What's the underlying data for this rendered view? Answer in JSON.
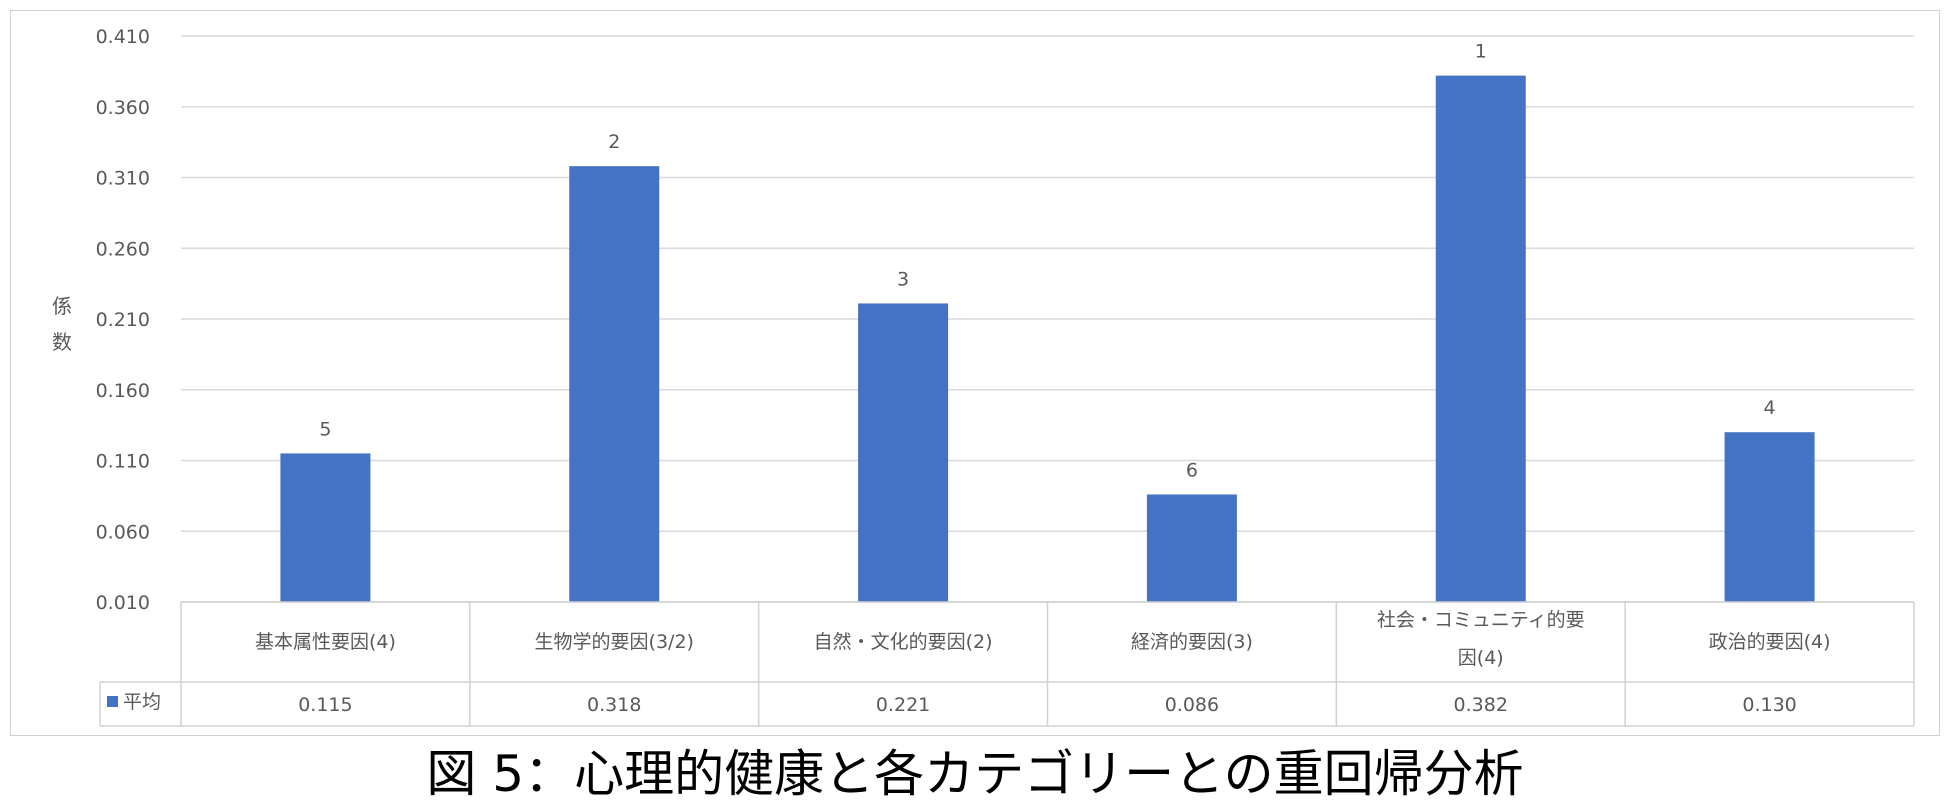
{
  "caption": "図 5：心理的健康と各カテゴリーとの重回帰分析",
  "chart_data": {
    "type": "bar",
    "title": "",
    "ylabel": "係数",
    "ylim": [
      0.01,
      0.41
    ],
    "yticks": [
      "0.410",
      "0.360",
      "0.310",
      "0.260",
      "0.210",
      "0.160",
      "0.110",
      "0.060",
      "0.010"
    ],
    "ytick_values": [
      0.41,
      0.36,
      0.31,
      0.26,
      0.21,
      0.16,
      0.11,
      0.06,
      0.01
    ],
    "grid": true,
    "categories": [
      "基本属性要因(4)",
      "生物学的要因(3/2)",
      "自然・文化的要因(2)",
      "経済的要因(3)",
      "社会・コミュニティ的要因(4)",
      "政治的要因(4)"
    ],
    "series": [
      {
        "name": "平均",
        "color": "#4472C4",
        "values": [
          0.115,
          0.318,
          0.221,
          0.086,
          0.382,
          0.13
        ],
        "value_labels": [
          "0.115",
          "0.318",
          "0.221",
          "0.086",
          "0.382",
          "0.130"
        ],
        "rank_labels": [
          "5",
          "2",
          "3",
          "6",
          "1",
          "4"
        ]
      }
    ],
    "data_table": true
  }
}
